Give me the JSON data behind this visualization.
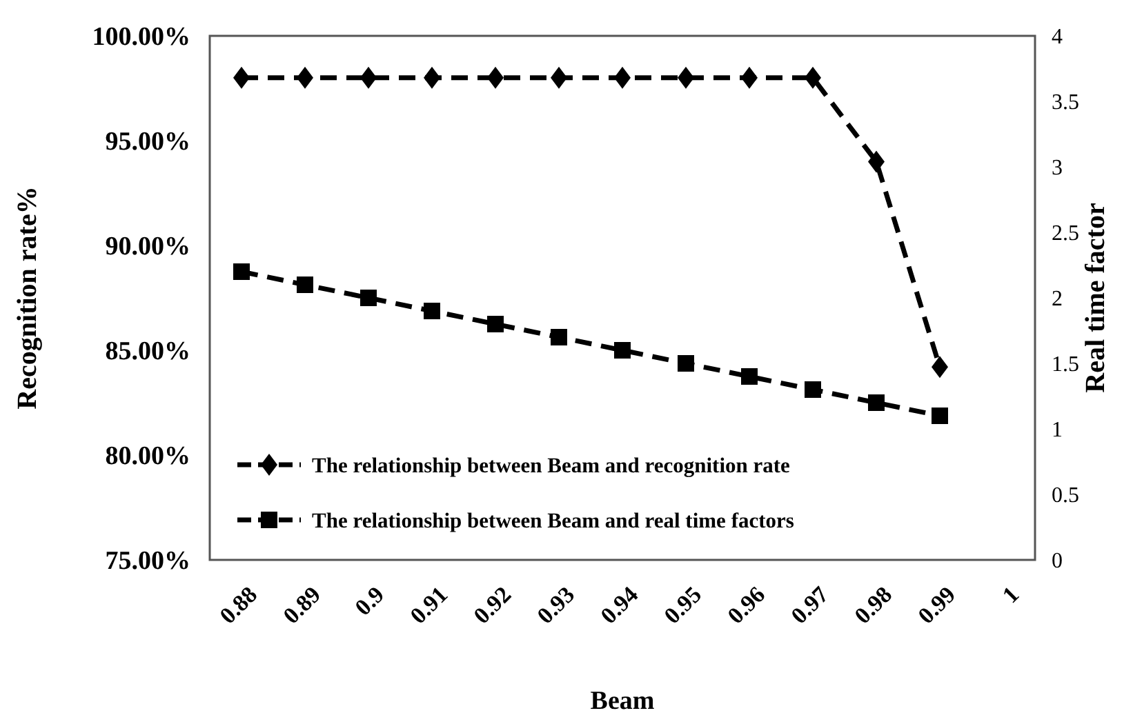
{
  "chart_data": {
    "type": "line",
    "xlabel": "Beam",
    "ylabel": "Recognition rate%",
    "y2label": "Real time factor",
    "categories": [
      "0.88",
      "0.89",
      "0.9",
      "0.91",
      "0.92",
      "0.93",
      "0.94",
      "0.95",
      "0.96",
      "0.97",
      "0.98",
      "0.99",
      "1"
    ],
    "series": [
      {
        "name": "The relationship between Beam and recognition rate",
        "color": "#000000",
        "marker": "diamond",
        "values": [
          98,
          98,
          98,
          98,
          98,
          98,
          98,
          98,
          98,
          98,
          94,
          84.2,
          null
        ]
      },
      {
        "name": "The relationship between Beam and real time factors",
        "color": "#000000",
        "marker": "square",
        "axis": "y2",
        "values": [
          2.2,
          2.1,
          2.0,
          1.9,
          1.8,
          1.7,
          1.6,
          1.5,
          1.4,
          1.3,
          1.2,
          1.1,
          null
        ]
      }
    ],
    "ylim": [
      75,
      100
    ],
    "yticks": [
      {
        "value": 75,
        "label": "75.00%"
      },
      {
        "value": 80,
        "label": "80.00%"
      },
      {
        "value": 85,
        "label": "85.00%"
      },
      {
        "value": 90,
        "label": "90.00%"
      },
      {
        "value": 95,
        "label": "95.00%"
      },
      {
        "value": 100,
        "label": "100.00%"
      }
    ],
    "y2lim": [
      0,
      4
    ],
    "y2ticks": [
      0,
      0.5,
      1,
      1.5,
      2,
      2.5,
      3,
      3.5,
      4
    ],
    "line_style": "dashed",
    "grid": false,
    "legend": "bottom left"
  }
}
